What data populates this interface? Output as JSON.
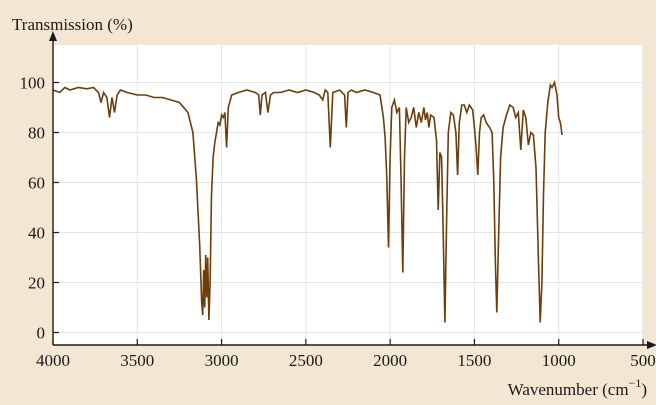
{
  "chart_data": {
    "type": "line",
    "ylabel": "Transmission (%)",
    "xlabel": "Wavenumber (cm",
    "xlabel_superscript": "−1",
    "xlabel_suffix": ")",
    "xlim": [
      4000,
      500
    ],
    "ylim": [
      -5,
      115
    ],
    "x_reversed": true,
    "grid": true,
    "x_ticks": [
      4000,
      3500,
      3000,
      2500,
      2000,
      1500,
      1000,
      500
    ],
    "y_ticks": [
      0,
      20,
      40,
      60,
      80,
      100
    ],
    "colors": {
      "line": "#6b3e0c",
      "plot_bg": "#ffffff",
      "page_bg": "#f3e6d2",
      "grid": "#e3e3e3"
    },
    "series": [
      {
        "points": [
          [
            4000,
            97
          ],
          [
            3960,
            96
          ],
          [
            3930,
            98
          ],
          [
            3900,
            97
          ],
          [
            3850,
            98
          ],
          [
            3800,
            97.5
          ],
          [
            3760,
            98
          ],
          [
            3730,
            96
          ],
          [
            3715,
            92
          ],
          [
            3700,
            96
          ],
          [
            3680,
            94
          ],
          [
            3665,
            86
          ],
          [
            3650,
            94
          ],
          [
            3635,
            88
          ],
          [
            3620,
            95
          ],
          [
            3600,
            97
          ],
          [
            3560,
            96
          ],
          [
            3500,
            95
          ],
          [
            3450,
            95
          ],
          [
            3400,
            94
          ],
          [
            3350,
            94
          ],
          [
            3300,
            93
          ],
          [
            3250,
            92
          ],
          [
            3200,
            88
          ],
          [
            3170,
            80
          ],
          [
            3150,
            62
          ],
          [
            3130,
            35
          ],
          [
            3118,
            12
          ],
          [
            3112,
            7
          ],
          [
            3106,
            25
          ],
          [
            3100,
            10
          ],
          [
            3094,
            31
          ],
          [
            3088,
            14
          ],
          [
            3082,
            30
          ],
          [
            3075,
            5
          ],
          [
            3068,
            20
          ],
          [
            3060,
            55
          ],
          [
            3050,
            70
          ],
          [
            3040,
            76
          ],
          [
            3030,
            80
          ],
          [
            3020,
            84
          ],
          [
            3010,
            83
          ],
          [
            3000,
            87
          ],
          [
            2990,
            86
          ],
          [
            2980,
            88
          ],
          [
            2970,
            74
          ],
          [
            2960,
            90
          ],
          [
            2940,
            95
          ],
          [
            2900,
            96
          ],
          [
            2850,
            97
          ],
          [
            2800,
            96
          ],
          [
            2780,
            95
          ],
          [
            2770,
            87
          ],
          [
            2760,
            95
          ],
          [
            2740,
            96
          ],
          [
            2725,
            88
          ],
          [
            2710,
            95
          ],
          [
            2690,
            96
          ],
          [
            2650,
            96
          ],
          [
            2600,
            97
          ],
          [
            2550,
            96
          ],
          [
            2500,
            97
          ],
          [
            2450,
            96
          ],
          [
            2420,
            95
          ],
          [
            2400,
            93
          ],
          [
            2385,
            97
          ],
          [
            2370,
            96
          ],
          [
            2355,
            74
          ],
          [
            2340,
            96
          ],
          [
            2300,
            97
          ],
          [
            2270,
            95
          ],
          [
            2260,
            82
          ],
          [
            2250,
            96
          ],
          [
            2230,
            97
          ],
          [
            2200,
            96
          ],
          [
            2150,
            97
          ],
          [
            2100,
            96
          ],
          [
            2060,
            95
          ],
          [
            2040,
            86
          ],
          [
            2030,
            78
          ],
          [
            2020,
            62
          ],
          [
            2010,
            34
          ],
          [
            2000,
            70
          ],
          [
            1990,
            90
          ],
          [
            1975,
            93
          ],
          [
            1960,
            88
          ],
          [
            1945,
            90
          ],
          [
            1935,
            60
          ],
          [
            1925,
            24
          ],
          [
            1915,
            70
          ],
          [
            1905,
            90
          ],
          [
            1890,
            84
          ],
          [
            1875,
            86
          ],
          [
            1860,
            90
          ],
          [
            1845,
            82
          ],
          [
            1830,
            88
          ],
          [
            1815,
            84
          ],
          [
            1800,
            90
          ],
          [
            1790,
            85
          ],
          [
            1780,
            88
          ],
          [
            1770,
            82
          ],
          [
            1760,
            87
          ],
          [
            1740,
            86
          ],
          [
            1725,
            77
          ],
          [
            1715,
            49
          ],
          [
            1705,
            72
          ],
          [
            1695,
            70
          ],
          [
            1685,
            40
          ],
          [
            1675,
            4
          ],
          [
            1665,
            45
          ],
          [
            1655,
            80
          ],
          [
            1640,
            88
          ],
          [
            1625,
            87
          ],
          [
            1610,
            80
          ],
          [
            1600,
            63
          ],
          [
            1590,
            84
          ],
          [
            1575,
            91
          ],
          [
            1560,
            91
          ],
          [
            1545,
            88
          ],
          [
            1530,
            91
          ],
          [
            1510,
            89
          ],
          [
            1500,
            82
          ],
          [
            1490,
            74
          ],
          [
            1480,
            63
          ],
          [
            1470,
            80
          ],
          [
            1460,
            86
          ],
          [
            1445,
            87
          ],
          [
            1430,
            84
          ],
          [
            1410,
            82
          ],
          [
            1395,
            80
          ],
          [
            1385,
            60
          ],
          [
            1375,
            26
          ],
          [
            1367,
            8
          ],
          [
            1358,
            35
          ],
          [
            1345,
            70
          ],
          [
            1330,
            82
          ],
          [
            1310,
            87
          ],
          [
            1290,
            91
          ],
          [
            1270,
            90
          ],
          [
            1255,
            86
          ],
          [
            1240,
            88
          ],
          [
            1225,
            73
          ],
          [
            1210,
            89
          ],
          [
            1195,
            86
          ],
          [
            1180,
            75
          ],
          [
            1165,
            80
          ],
          [
            1150,
            79
          ],
          [
            1135,
            66
          ],
          [
            1120,
            28
          ],
          [
            1110,
            4
          ],
          [
            1100,
            20
          ],
          [
            1090,
            55
          ],
          [
            1080,
            80
          ],
          [
            1065,
            92
          ],
          [
            1050,
            99
          ],
          [
            1040,
            98
          ],
          [
            1025,
            100
          ],
          [
            1010,
            95
          ],
          [
            1000,
            86
          ],
          [
            990,
            84
          ],
          [
            980,
            79
          ]
        ]
      }
    ]
  }
}
